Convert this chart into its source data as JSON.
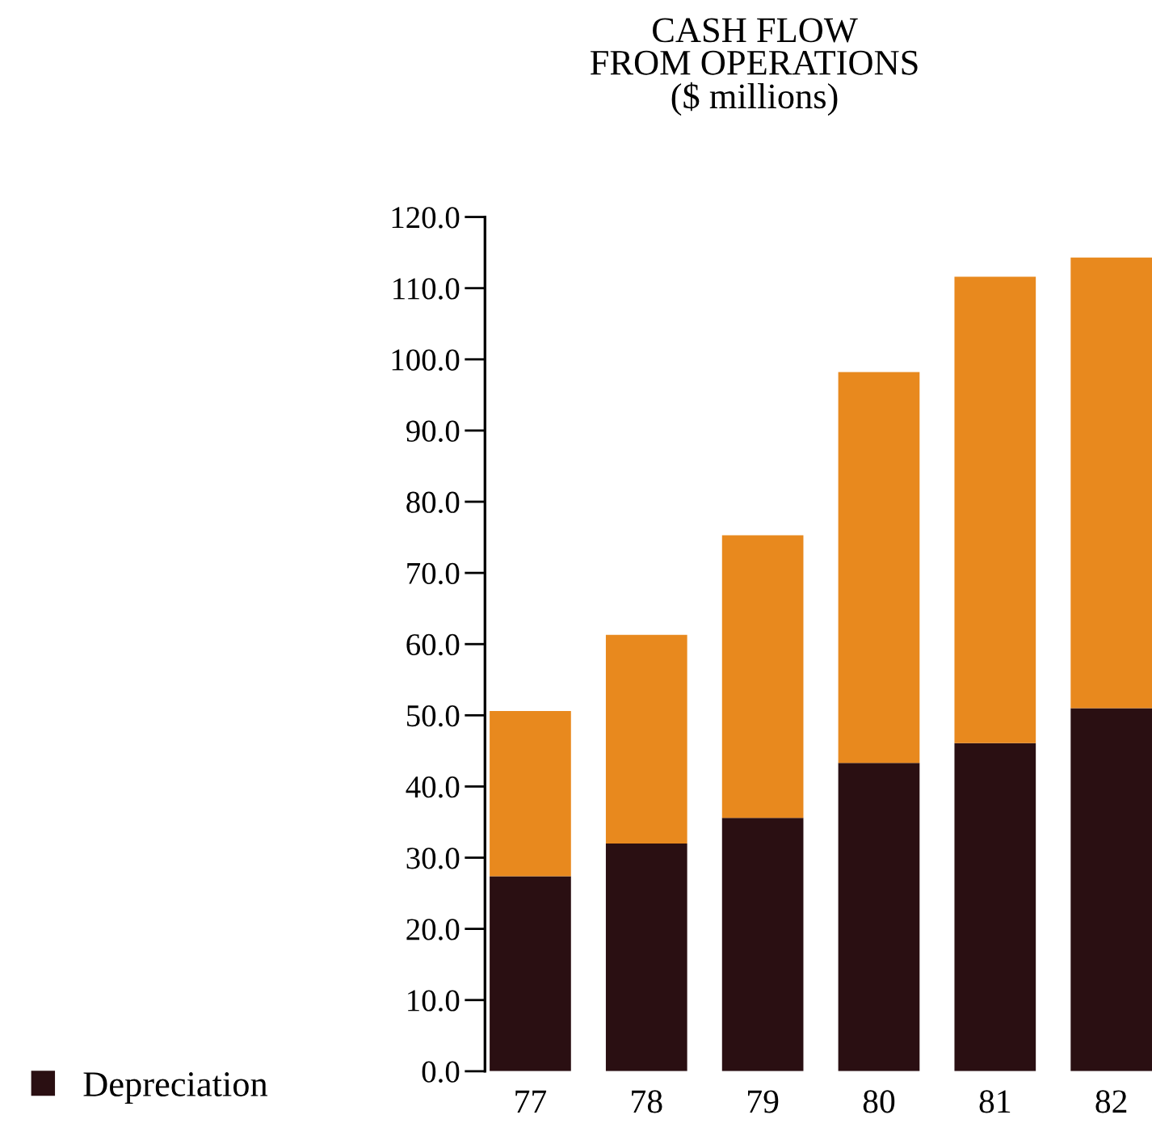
{
  "chart_data": {
    "type": "bar",
    "title": "CASH FLOW\nFROM OPERATIONS\n($ millions)",
    "categories": [
      "77",
      "78",
      "79",
      "80",
      "81",
      "82"
    ],
    "stacked": true,
    "series": [
      {
        "name": "Depreciation",
        "color": "#2a0f12",
        "values": [
          27.4,
          32.0,
          35.6,
          43.3,
          46.1,
          51.0
        ]
      },
      {
        "color": "#e8891e",
        "values": [
          23.2,
          29.3,
          39.7,
          54.9,
          65.5,
          63.3
        ]
      }
    ],
    "ylim": [
      0,
      120
    ],
    "yticks": [
      {
        "value": 0,
        "label": "0.0"
      },
      {
        "value": 10,
        "label": "10.0"
      },
      {
        "value": 20,
        "label": "20.0"
      },
      {
        "value": 30,
        "label": "30.0"
      },
      {
        "value": 40,
        "label": "40.0"
      },
      {
        "value": 50,
        "label": "50.0"
      },
      {
        "value": 60,
        "label": "60.0"
      },
      {
        "value": 70,
        "label": "70.0"
      },
      {
        "value": 80,
        "label": "80.0"
      },
      {
        "value": 90,
        "label": "90.0"
      },
      {
        "value": 100,
        "label": "100.0"
      },
      {
        "value": 110,
        "label": "110.0"
      },
      {
        "value": 120,
        "label": "120.0"
      }
    ],
    "grid": false,
    "legend": "bottom left"
  }
}
